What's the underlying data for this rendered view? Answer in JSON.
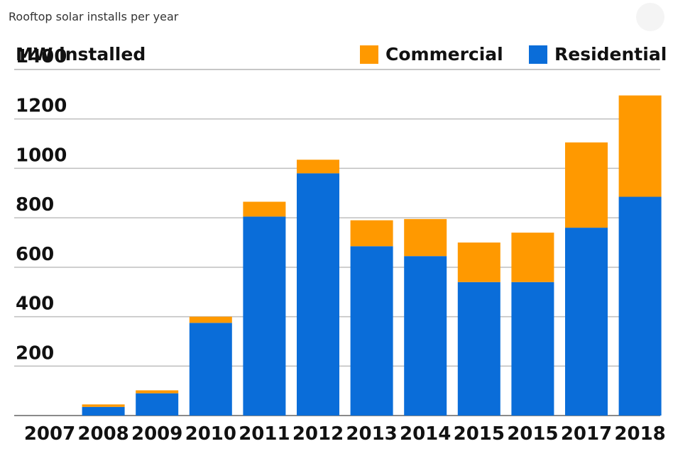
{
  "subtitle": "Rooftop solar installs per year",
  "ylabel": "MW installed",
  "legend": {
    "commercial": "Commercial",
    "residential": "Residential"
  },
  "colors": {
    "commercial": "#FF9900",
    "residential": "#0A6DD9",
    "grid": "#bfbfbf"
  },
  "chart_data": {
    "type": "bar",
    "stacked": true,
    "ylabel": "MW installed",
    "categories": [
      "2007",
      "2008",
      "2009",
      "2010",
      "2011",
      "2012",
      "2013",
      "2014",
      "2015",
      "2015",
      "2017",
      "2018"
    ],
    "series": [
      {
        "name": "Residential",
        "values": [
          0,
          35,
          90,
          375,
          805,
          980,
          685,
          645,
          540,
          540,
          760,
          885
        ]
      },
      {
        "name": "Commercial",
        "values": [
          0,
          10,
          12,
          25,
          60,
          55,
          105,
          150,
          160,
          200,
          345,
          410
        ]
      }
    ],
    "ylim": [
      0,
      1400
    ],
    "yticks": [
      200,
      400,
      600,
      800,
      1000,
      1200,
      1400
    ],
    "grid": true,
    "legend_position": "top-right"
  }
}
